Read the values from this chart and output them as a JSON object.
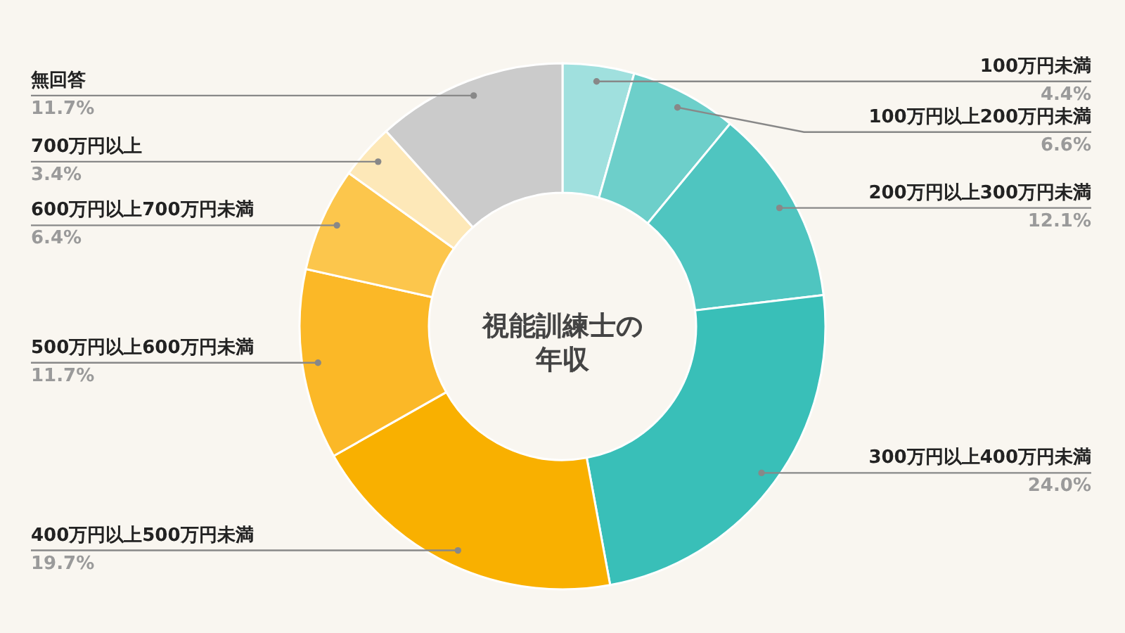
{
  "chart_data": {
    "type": "donut",
    "title": "視能訓練士の年収",
    "categories": [
      "100万円未満",
      "100万円以上200万円未満",
      "200万円以上300万円未満",
      "300万円以上400万円未満",
      "400万円以上500万円未満",
      "500万円以上600万円未満",
      "600万円以上700万円未満",
      "700万円以上",
      "無回答"
    ],
    "values": [
      4.4,
      6.6,
      12.1,
      24.0,
      19.7,
      11.7,
      6.4,
      3.4,
      11.7
    ],
    "value_labels": [
      "4.4%",
      "6.6%",
      "12.1%",
      "24.0%",
      "19.7%",
      "11.7%",
      "6.4%",
      "3.4%",
      "11.7%"
    ],
    "colors": [
      "#a0e0de",
      "#6dcfca",
      "#4fc5c0",
      "#39bfb8",
      "#f9b000",
      "#fbb827",
      "#fcc64c",
      "#fde8b8",
      "#cbcbcb"
    ]
  }
}
